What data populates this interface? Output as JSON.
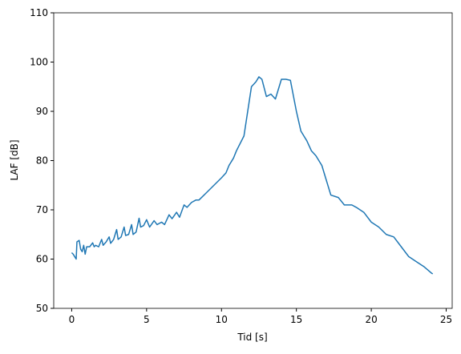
{
  "chart_data": {
    "type": "line",
    "xlabel": "Tid [s]",
    "ylabel": "LAF [dB]",
    "x": [
      0,
      0.1,
      0.2,
      0.3,
      0.35,
      0.5,
      0.6,
      0.7,
      0.8,
      0.9,
      1.0,
      1.2,
      1.4,
      1.5,
      1.6,
      1.8,
      2.0,
      2.1,
      2.3,
      2.5,
      2.6,
      2.8,
      3.0,
      3.1,
      3.3,
      3.5,
      3.6,
      3.8,
      4.0,
      4.1,
      4.3,
      4.5,
      4.6,
      4.8,
      5.0,
      5.2,
      5.5,
      5.7,
      6.0,
      6.2,
      6.5,
      6.7,
      7.0,
      7.2,
      7.5,
      7.7,
      8.0,
      8.3,
      8.5,
      9.0,
      9.5,
      10.0,
      10.3,
      10.5,
      10.8,
      11.0,
      11.5,
      12.0,
      12.3,
      12.5,
      12.7,
      13.0,
      13.3,
      13.6,
      14.0,
      14.3,
      14.6,
      15.0,
      15.3,
      15.7,
      16.0,
      16.3,
      16.7,
      17.0,
      17.3,
      17.8,
      18.2,
      18.7,
      19.0,
      19.5,
      20.0,
      20.5,
      21.0,
      21.5,
      22.0,
      22.5,
      23.0,
      23.5,
      24.0,
      24.1
    ],
    "series": [
      {
        "color": "#1f77b4",
        "values": [
          61.3,
          61,
          60.5,
          60,
          63.5,
          63.8,
          62,
          61.5,
          62.8,
          61,
          62.5,
          62.5,
          63.3,
          62.5,
          62.8,
          62.5,
          64,
          62.8,
          63.5,
          64.5,
          63.2,
          64,
          66,
          64,
          64.5,
          66.5,
          64.8,
          65,
          67,
          65,
          65.5,
          68.3,
          66.5,
          66.8,
          68,
          66.5,
          67.8,
          67,
          67.5,
          67,
          69,
          68.2,
          69.5,
          68.5,
          71,
          70.5,
          71.5,
          72,
          72,
          73.5,
          75,
          76.5,
          77.5,
          79,
          80.5,
          82,
          85,
          95,
          96,
          97,
          96.5,
          93,
          93.5,
          92.5,
          96.5,
          96.5,
          96.3,
          90,
          86,
          84,
          82,
          81,
          79,
          76,
          73,
          72.5,
          71,
          71,
          70.5,
          69.5,
          67.5,
          66.5,
          65,
          64.5,
          62.5,
          60.5,
          59.5,
          58.5,
          57.2,
          57
        ]
      }
    ],
    "xlim": [
      -1.2,
      25.4
    ],
    "xticks": [
      0,
      5,
      10,
      15,
      20,
      25
    ],
    "ylim": [
      50,
      110
    ],
    "yticks": [
      50,
      60,
      70,
      80,
      90,
      100,
      110
    ],
    "grid": false
  }
}
